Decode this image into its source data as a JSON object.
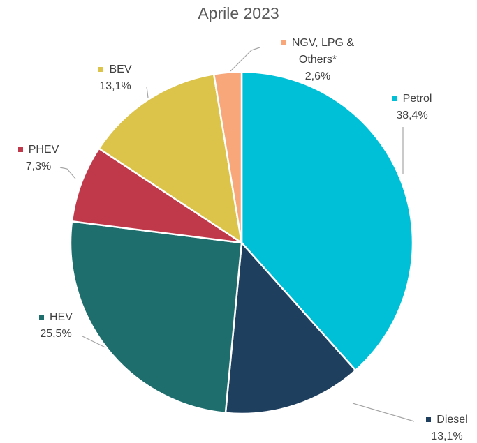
{
  "chart_data": {
    "type": "pie",
    "title": "Aprile 2023",
    "categories": [
      "Petrol",
      "Diesel",
      "HEV",
      "PHEV",
      "BEV",
      "NGV, LPG & Others*"
    ],
    "values": [
      38.4,
      13.1,
      25.5,
      7.3,
      13.1,
      2.6
    ],
    "value_labels": [
      "38,4%",
      "13,1%",
      "25,5%",
      "7,3%",
      "13,1%",
      "2,6%"
    ],
    "colors": [
      "#00c0d8",
      "#1f3f5f",
      "#1f6e6e",
      "#c0394a",
      "#dcc34a",
      "#f7a77a"
    ]
  }
}
